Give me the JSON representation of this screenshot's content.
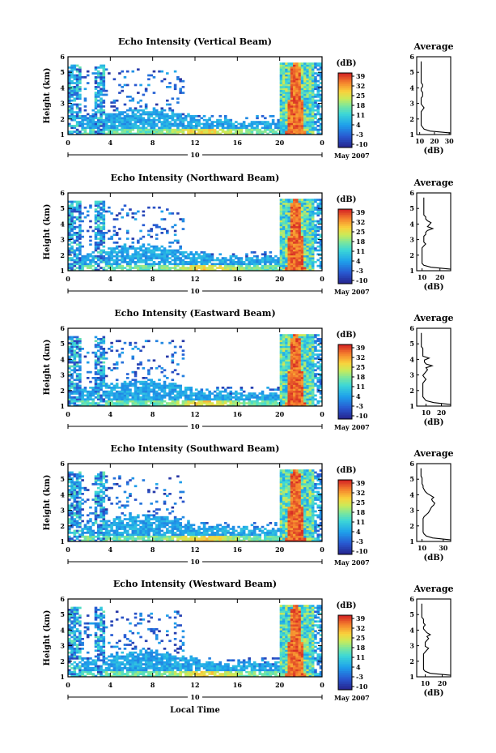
{
  "chart_data": {
    "type": "heatmap",
    "date_label": "May 2007",
    "day_marker": "10",
    "xlabel": "Local Time",
    "x_ticks": [
      "0",
      "4",
      "8",
      "12",
      "16",
      "20",
      "0"
    ],
    "xlim": [
      0,
      24
    ],
    "colorbar": {
      "unit": "(dB)",
      "ticks": [
        "39",
        "32",
        "25",
        "18",
        "11",
        "4",
        "-3",
        "-10"
      ],
      "range": [
        -10,
        39
      ]
    },
    "panels": [
      {
        "title": "Echo Intensity (Vertical Beam)",
        "ylabel": "Height (km)",
        "y_ticks": [
          "1",
          "2",
          "3",
          "4",
          "5",
          "6"
        ],
        "ylim": [
          1,
          6
        ],
        "average": {
          "title": "Average",
          "xlabel": "(dB)",
          "x_ticks": [
            "10",
            "20",
            "30"
          ],
          "xlim": [
            8,
            31
          ],
          "profile_db": [
            31,
            17,
            13,
            12,
            11,
            11,
            11,
            11,
            11,
            11,
            11,
            11,
            12,
            13,
            12,
            11,
            11,
            11,
            11,
            12,
            12,
            12,
            11,
            11,
            12,
            12,
            11,
            11,
            11,
            11,
            11,
            11,
            11,
            11,
            11,
            11,
            11,
            11
          ]
        }
      },
      {
        "title": "Echo Intensity (Northward Beam)",
        "ylabel": "Height (km)",
        "y_ticks": [
          "1",
          "2",
          "3",
          "4",
          "5",
          "6"
        ],
        "ylim": [
          1,
          6
        ],
        "average": {
          "title": "Average",
          "xlabel": "(dB)",
          "x_ticks": [
            "10",
            "20"
          ],
          "xlim": [
            7,
            26
          ],
          "profile_db": [
            26,
            15,
            11,
            10,
            10,
            10,
            10,
            10,
            10,
            10,
            10,
            10,
            11,
            12,
            11,
            11,
            11,
            11,
            12,
            12,
            13,
            16,
            13,
            14,
            15,
            13,
            12,
            12,
            11,
            11,
            11,
            11,
            11,
            11,
            11,
            11,
            11,
            11
          ]
        }
      },
      {
        "title": "Echo Intensity (Eastward Beam)",
        "ylabel": "Height (km)",
        "y_ticks": [
          "1",
          "2",
          "3",
          "4",
          "5",
          "6"
        ],
        "ylim": [
          1,
          6
        ],
        "average": {
          "title": "Average",
          "xlabel": "(dB)",
          "x_ticks": [
            "10",
            "20"
          ],
          "xlim": [
            4,
            26
          ],
          "profile_db": [
            26,
            15,
            10,
            9,
            8,
            8,
            8,
            8,
            8,
            8,
            8,
            8,
            9,
            10,
            9,
            8,
            9,
            10,
            11,
            10,
            14,
            10,
            9,
            9,
            12,
            8,
            8,
            8,
            8,
            8,
            7,
            7,
            7,
            7,
            7,
            7,
            7,
            7
          ]
        }
      },
      {
        "title": "Echo Intensity (Southward Beam)",
        "ylabel": "Height (km)",
        "y_ticks": [
          "1",
          "2",
          "3",
          "4",
          "5",
          "6"
        ],
        "ylim": [
          1,
          6
        ],
        "average": {
          "title": "Average",
          "xlabel": "(dB)",
          "x_ticks": [
            "10",
            "30"
          ],
          "xlim": [
            5,
            37
          ],
          "profile_db": [
            37,
            20,
            14,
            12,
            11,
            11,
            11,
            11,
            11,
            11,
            11,
            11,
            12,
            14,
            16,
            17,
            18,
            19,
            21,
            22,
            20,
            19,
            21,
            18,
            15,
            13,
            12,
            11,
            11,
            10,
            10,
            10,
            10,
            9,
            9,
            9,
            9,
            9
          ]
        }
      },
      {
        "title": "Echo Intensity (Westward Beam)",
        "ylabel": "Height (km)",
        "y_ticks": [
          "1",
          "2",
          "3",
          "4",
          "5",
          "6"
        ],
        "ylim": [
          1,
          6
        ],
        "average": {
          "title": "Average",
          "xlabel": "(dB)",
          "x_ticks": [
            "10",
            "20"
          ],
          "xlim": [
            5,
            25
          ],
          "profile_db": [
            25,
            13,
            10,
            9,
            9,
            9,
            9,
            9,
            9,
            9,
            9,
            9,
            10,
            11,
            12,
            10,
            10,
            10,
            11,
            12,
            11,
            13,
            11,
            10,
            9,
            9,
            10,
            9,
            9,
            9,
            8,
            8,
            8,
            8,
            8,
            8,
            8,
            8
          ]
        }
      }
    ]
  }
}
